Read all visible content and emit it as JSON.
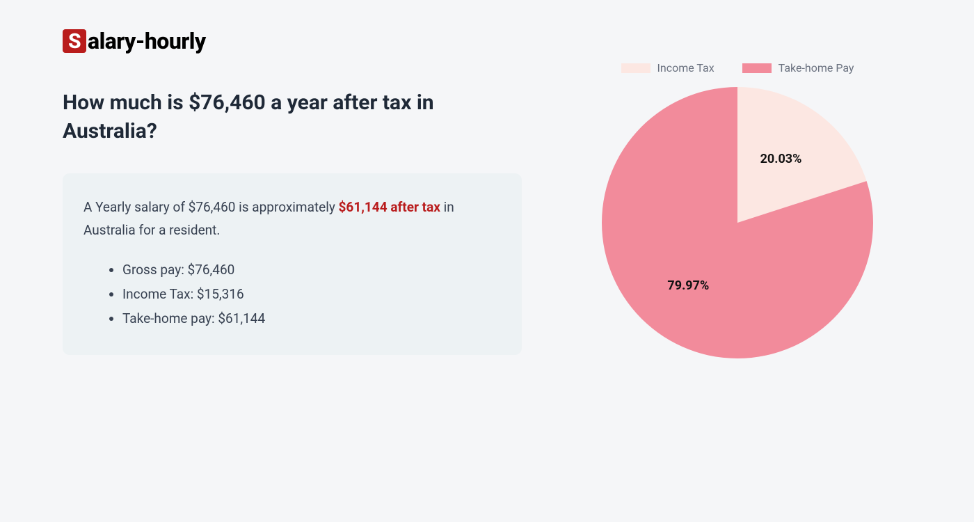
{
  "logo": {
    "badge": "S",
    "rest": "alary-hourly"
  },
  "heading": "How much is $76,460 a year after tax in Australia?",
  "summary": {
    "prefix": "A Yearly salary of $76,460 is approximately ",
    "highlight": "$61,144 after tax",
    "suffix": " in Australia for a resident."
  },
  "details": [
    "Gross pay: $76,460",
    "Income Tax: $15,316",
    "Take-home pay: $61,144"
  ],
  "chart": {
    "type": "pie",
    "radius": 195,
    "background_color": "#f5f6f8",
    "slices": [
      {
        "label": "Income Tax",
        "value": 20.03,
        "display": "20.03%",
        "color": "#fce7e2"
      },
      {
        "label": "Take-home Pay",
        "value": 79.97,
        "display": "79.97%",
        "color": "#f28b9b"
      }
    ],
    "legend_text_color": "#6b7280",
    "label_fontsize": 18,
    "label_fontweight": 700,
    "label_color": "#111111",
    "start_angle_deg": -90
  }
}
